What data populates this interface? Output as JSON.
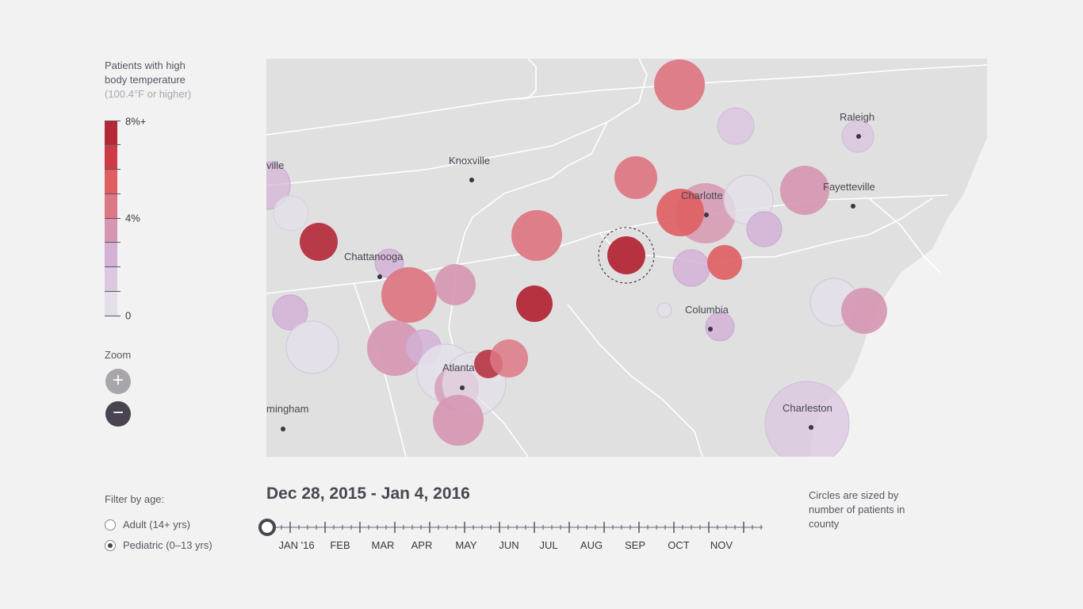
{
  "legend": {
    "title_line1": "Patients with high",
    "title_line2": "body temperature",
    "subtitle": "(100.4°F or higher)",
    "scale_labels": {
      "max": "8%+",
      "mid": "4%",
      "min": "0"
    },
    "colors": [
      "#e4e0ea",
      "#dbc8e0",
      "#d4b2d6",
      "#d696b2",
      "#dc7884",
      "#df5e62",
      "#d03a46",
      "#b42838"
    ]
  },
  "zoom": {
    "label": "Zoom",
    "in_symbol": "+",
    "out_symbol": "−"
  },
  "map": {
    "background": "#e0e0e0",
    "cities": [
      {
        "name": "Knoxville"
      },
      {
        "name": "Chattanooga"
      },
      {
        "name": "Atlanta"
      },
      {
        "name": "Charlotte"
      },
      {
        "name": "Raleigh"
      },
      {
        "name": "Fayetteville"
      },
      {
        "name": "Columbia"
      },
      {
        "name": "Charleston"
      },
      {
        "name": "ville"
      },
      {
        "name": "mingham"
      }
    ]
  },
  "filter": {
    "title": "Filter by age:",
    "options": [
      {
        "label": "Adult (14+ yrs)",
        "selected": false
      },
      {
        "label": "Pediatric (0–13 yrs)",
        "selected": true
      }
    ]
  },
  "timeline": {
    "date_range": "Dec 28, 2015 - Jan 4, 2016",
    "months": [
      "JAN '16",
      "FEB",
      "MAR",
      "APR",
      "MAY",
      "JUN",
      "JUL",
      "AUG",
      "SEP",
      "OCT",
      "NOV"
    ],
    "position": 0
  },
  "note": "Circles are sized by number of patients in county"
}
